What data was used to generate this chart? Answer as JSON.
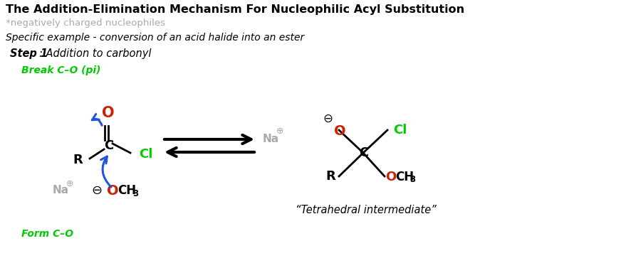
{
  "title": "The Addition-Elimination Mechanism For Nucleophilic Acyl Substitution",
  "subtitle": "*negatively charged nucleophiles",
  "subtitle2": "Specific example - conversion of an acid halide into an ester",
  "step_bold": "Step 1",
  "step_italic": ": Addition to carbonyl",
  "break_label": "Break C–O (pi)",
  "form_label": "Form C–O",
  "tetrahedral": "“Tetrahedral intermediate”",
  "green": "#00cc00",
  "red": "#cc2200",
  "blue": "#2255dd",
  "black": "#000000",
  "gray": "#aaaaaa",
  "bg": "#ffffff"
}
